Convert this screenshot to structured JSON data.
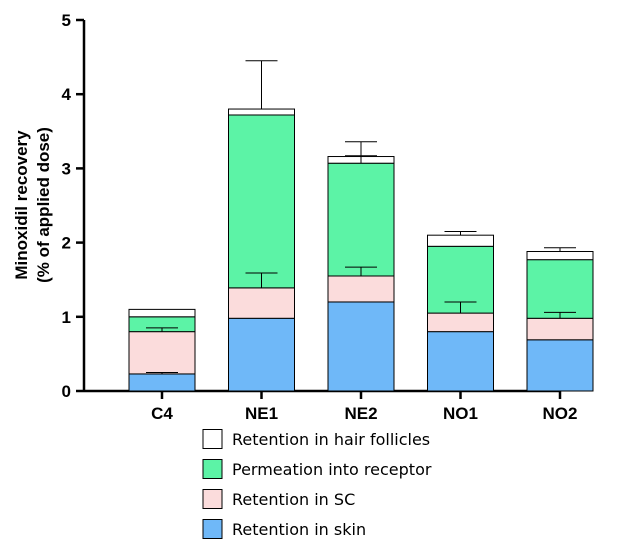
{
  "chart_data": {
    "type": "bar",
    "stacked": true,
    "categories": [
      "C4",
      "NE1",
      "NE2",
      "NO1",
      "NO2"
    ],
    "ylabel": [
      "Minoxidil recovery",
      "(% of applied dose)"
    ],
    "ylim": [
      0,
      5
    ],
    "yticks": [
      "0",
      "1",
      "2",
      "3",
      "4",
      "5"
    ],
    "grid": false,
    "legend_position": "bottom",
    "series": [
      {
        "name": "Retention in skin",
        "color": "#6fb8f8",
        "values": [
          0.23,
          0.98,
          1.2,
          0.8,
          0.69
        ],
        "errors": [
          0.02,
          0.0,
          0.0,
          0.0,
          0.0
        ]
      },
      {
        "name": "Retention in SC",
        "color": "#fbdcdc",
        "values": [
          0.57,
          0.41,
          0.35,
          0.25,
          0.29
        ],
        "errors": [
          0.05,
          0.2,
          0.12,
          0.15,
          0.08
        ]
      },
      {
        "name": "Permeation into receptor",
        "color": "#5cf3a6",
        "values": [
          0.2,
          2.33,
          1.52,
          0.9,
          0.79
        ],
        "errors": [
          0.0,
          0.0,
          0.1,
          0.0,
          0.0
        ]
      },
      {
        "name": "Retention in hair follicles",
        "color": "#ffffff",
        "values": [
          0.1,
          0.08,
          0.09,
          0.15,
          0.11
        ],
        "errors": [
          0.0,
          0.65,
          0.2,
          0.05,
          0.05
        ]
      }
    ],
    "legend_order": [
      3,
      2,
      1,
      0
    ]
  }
}
